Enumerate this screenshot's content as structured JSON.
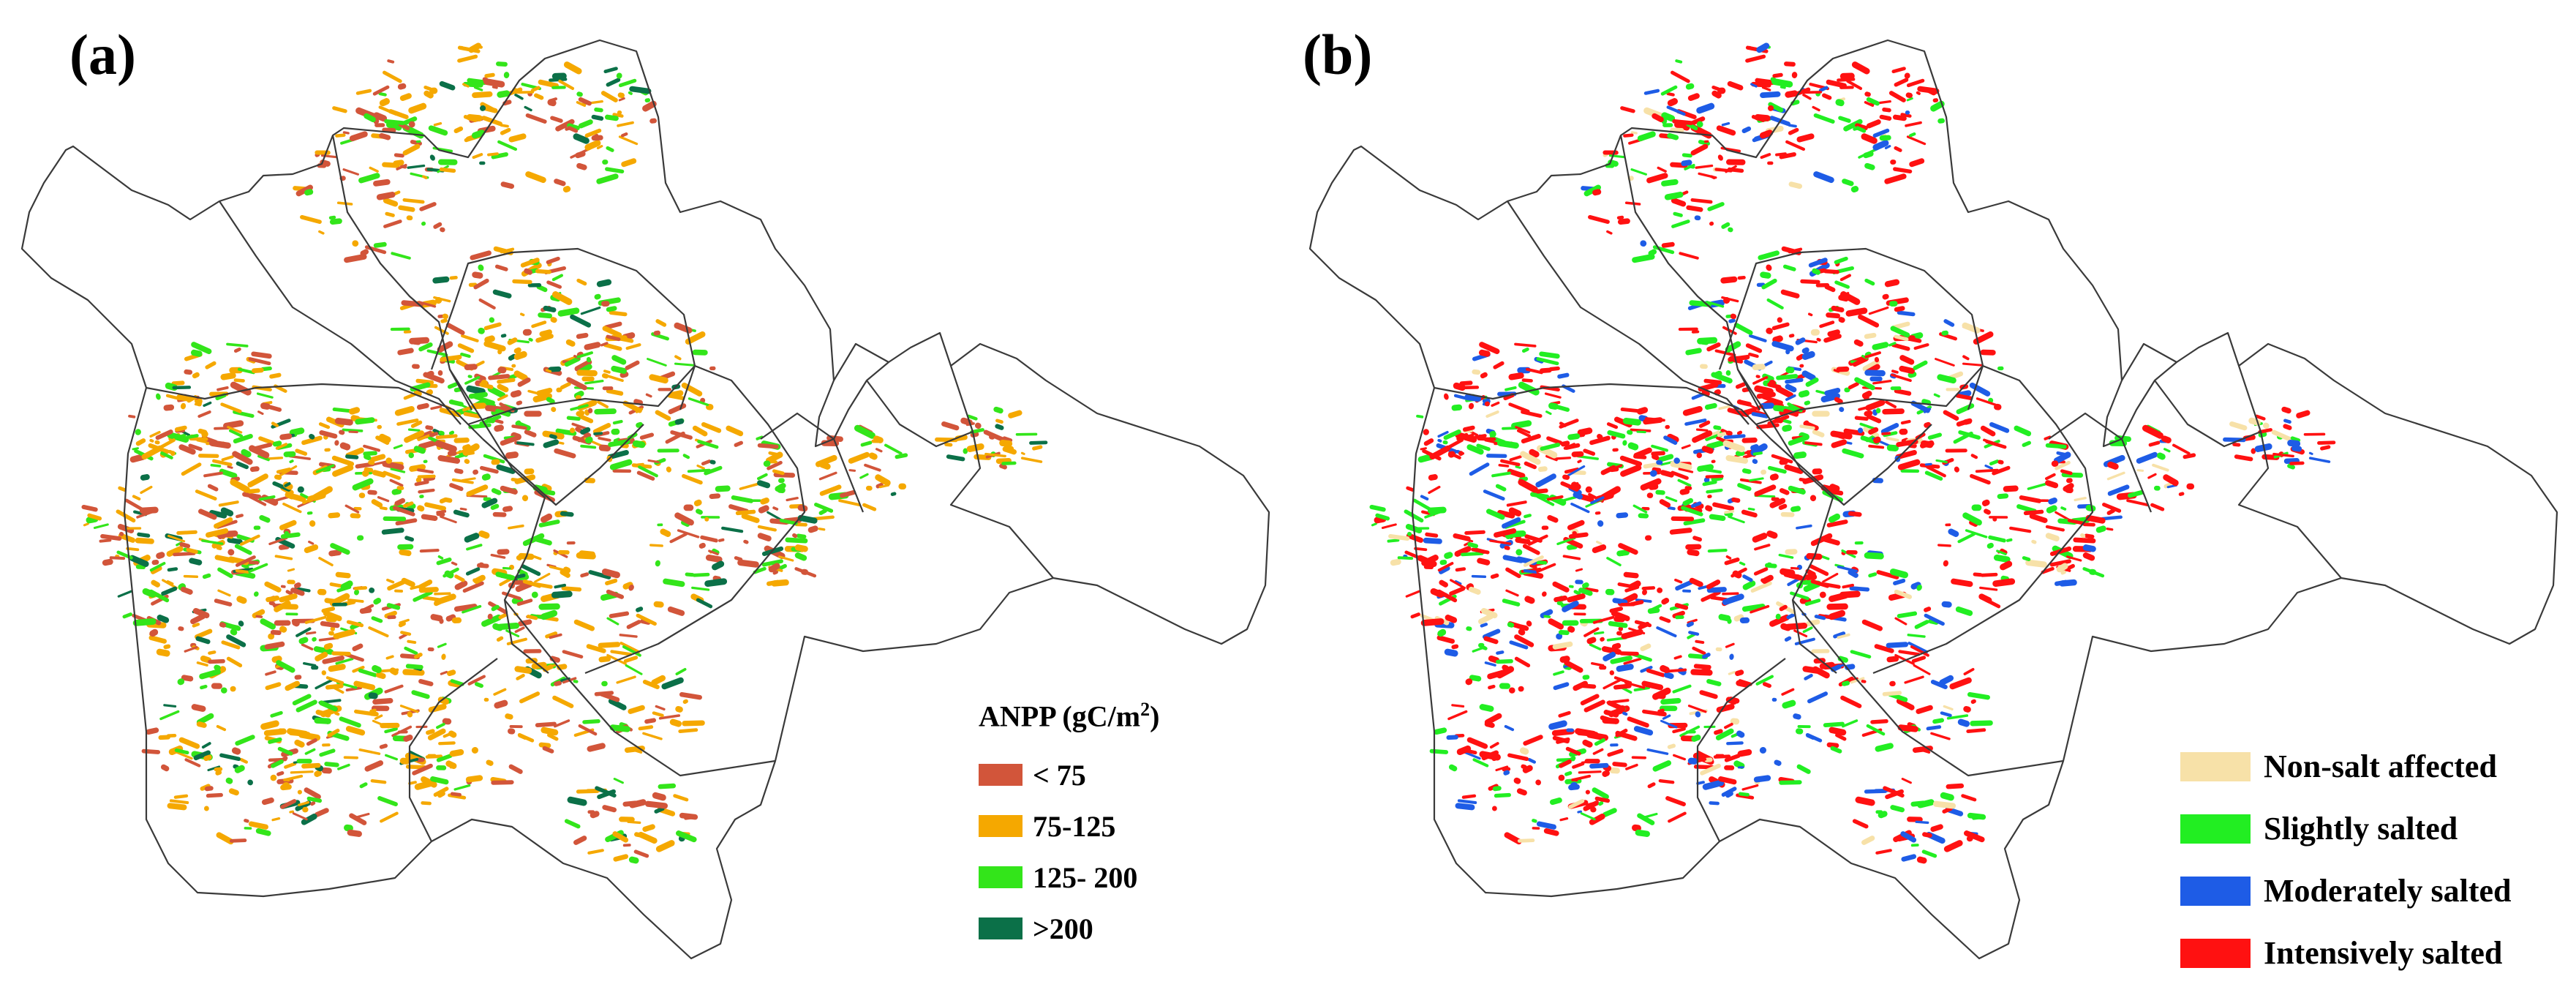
{
  "figure": {
    "panels": [
      {
        "id": "a",
        "label": "(a)",
        "legend_title_prefix": "ANPP (gC/m",
        "legend_title_sup": "2",
        "legend_title_suffix": ")",
        "classes": [
          {
            "label": "< 75",
            "color": "#d2553a"
          },
          {
            "label": "75-125",
            "color": "#f5a800"
          },
          {
            "label": "125- 200",
            "color": "#33e51a"
          },
          {
            "label": ">200",
            "color": "#0b7048"
          }
        ]
      },
      {
        "id": "b",
        "label": "(b)",
        "classes": [
          {
            "label": "Non-salt affected",
            "color": "#f7e1a8"
          },
          {
            "label": "Slightly salted",
            "color": "#22ee22"
          },
          {
            "label": "Moderately salted",
            "color": "#1e5ce6"
          },
          {
            "label": "Intensively salted",
            "color": "#ff1111"
          }
        ]
      }
    ]
  }
}
